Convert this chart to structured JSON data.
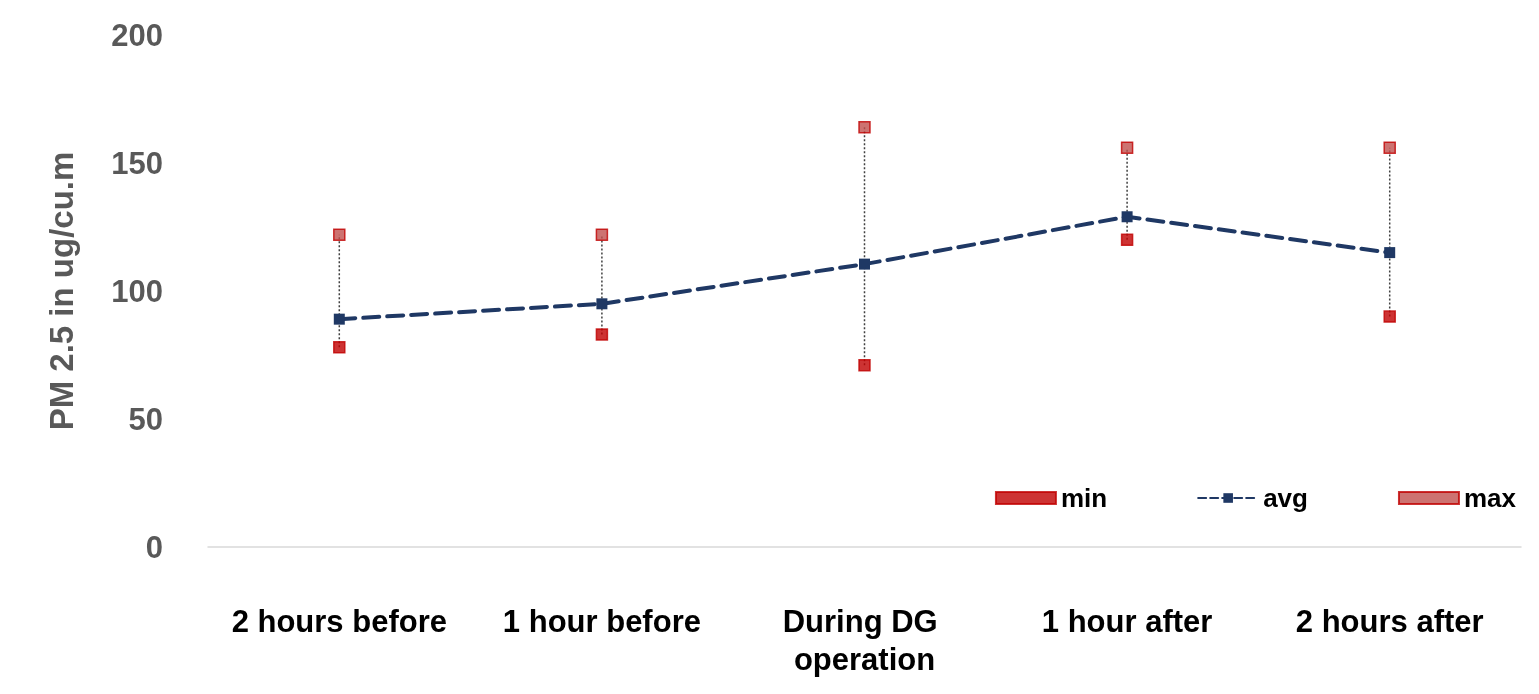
{
  "chart_data": {
    "type": "line",
    "ylabel": "PM 2.5 in ug/cu.m",
    "categories": [
      "2 hours before",
      "1 hour before",
      "During DG operation",
      "1 hour after",
      "2 hours after"
    ],
    "series": [
      {
        "name": "min",
        "type": "scatter",
        "color": "#c00000",
        "marker": "square",
        "values": [
          78,
          83,
          71,
          120,
          90
        ]
      },
      {
        "name": "avg",
        "type": "line",
        "color": "#1f3864",
        "marker": "square",
        "line_style": "dashed",
        "values": [
          89,
          95,
          110.5,
          129,
          115
        ]
      },
      {
        "name": "max",
        "type": "scatter",
        "color": "#c0504d",
        "marker": "square",
        "values": [
          122,
          122,
          164,
          156,
          156
        ]
      }
    ],
    "ylim": [
      0,
      200
    ],
    "yticks": [
      0,
      50,
      100,
      150,
      200
    ],
    "grid": false,
    "legend": "bottom right"
  }
}
